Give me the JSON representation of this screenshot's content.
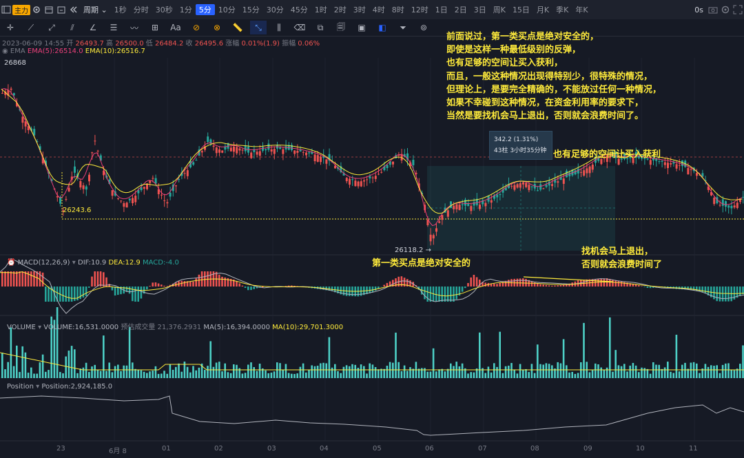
{
  "topbar": {
    "indicator_button": "主力",
    "period_label": "周期",
    "timeframes": [
      "1秒",
      "分时",
      "30秒",
      "1分",
      "5分",
      "10分",
      "15分",
      "30分",
      "45分",
      "1时",
      "2时",
      "3时",
      "4时",
      "8时",
      "12时",
      "1日",
      "2日",
      "3日",
      "周K",
      "15日",
      "月K",
      "季K",
      "年K"
    ],
    "active_timeframe": "5分",
    "countdown": "0s"
  },
  "toolbar": {
    "text_tool": "Aa"
  },
  "ohlc": {
    "date": "2023-06-09 14:55",
    "open_label": "开",
    "open": "26493.7",
    "high_label": "高",
    "high": "26500.0",
    "low_label": "低",
    "low": "26484.2",
    "close_label": "收",
    "close": "26495.6",
    "change_label": "涨幅",
    "change": "0.01%(1.9)",
    "amp_label": "振幅",
    "amp": "0.06%"
  },
  "ema": {
    "name": "EMA",
    "ema5": "EMA(5):26514.0",
    "ema10": "EMA(10):26516.7",
    "colors": {
      "ema5": "#ec407a",
      "ema10": "#ffeb3b"
    }
  },
  "price_labels": {
    "high_marker": "26868",
    "support_label": "26243.6",
    "low_label": "26118.2 →"
  },
  "measure_tooltip": {
    "line1": "342.2 (1.31%)",
    "line2": "43柱  3小时35分钟"
  },
  "annotations": {
    "main_lines": [
      "前面说过，第一类买点是绝对安全的，",
      "即使是这样一种最低级别的反弹，",
      "也有足够的空间让买入获利，",
      "而且，一般这种情况出现得特别少，很特殊的情况，",
      "但理论上，是要完全精确的，不能放过任何一种情况，",
      "如果不幸碰到这种情况，在资金利用率的要求下，",
      "当然是要找机会马上退出，否则就会浪费时间了。"
    ],
    "profit_note": "也有足够的空间让买入获利",
    "buy_point_note": "第一类买点是绝对安全的",
    "exit_lines": [
      "找机会马上退出，",
      "否则就会浪费时间了"
    ]
  },
  "macd": {
    "name": "MACD(12,26,9)",
    "dif": "DIF:10.9",
    "dea": "DEA:12.9",
    "macd": "MACD:-4.0"
  },
  "volume": {
    "name": "VOLUME",
    "value": "VOLUME:16,531.0000",
    "forecast": "预估成交量 21,376.2931",
    "ma5": "MA(5):16,394.0000",
    "ma10": "MA(10):29,701.3000"
  },
  "position": {
    "name": "Position",
    "value": "Position:2,924,185.0"
  },
  "x_axis": [
    "23",
    "6月 8",
    "01",
    "02",
    "03",
    "04",
    "05",
    "06",
    "07",
    "08",
    "09",
    "10",
    "11"
  ],
  "colors": {
    "up": "#ef5350",
    "down": "#26a69a",
    "volume": "#4dd0c6",
    "accent": "#2962ff",
    "annotation": "#ffeb3b"
  }
}
